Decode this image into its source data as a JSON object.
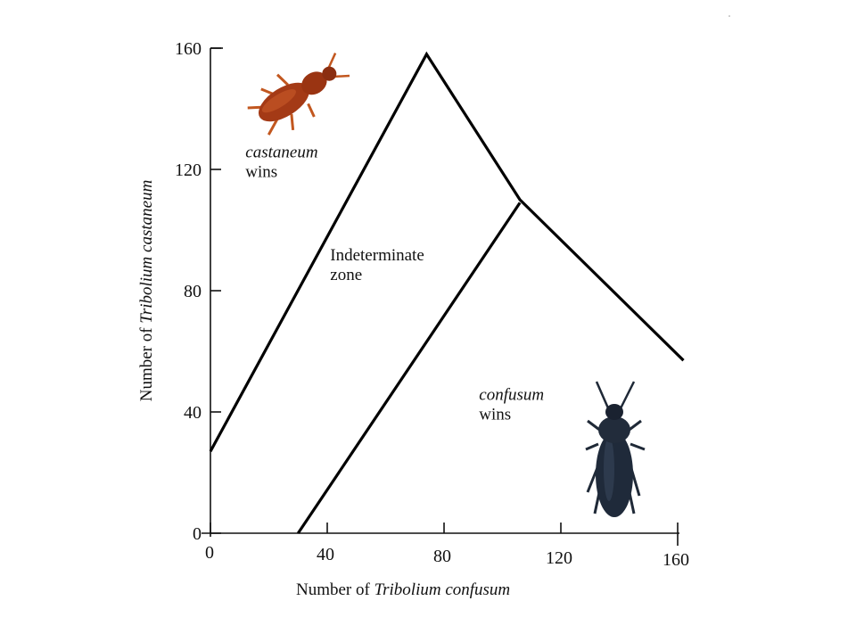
{
  "chart_data": {
    "type": "line",
    "xlabel": "Number of Tribolium confusum",
    "xlabel_parts": {
      "plain": "Number of ",
      "italic": "Tribolium confusum"
    },
    "ylabel": "Number of Tribolium castaneum",
    "ylabel_parts": {
      "plain": "Number of ",
      "italic": "Tribolium castaneum"
    },
    "xlim": [
      0,
      160
    ],
    "ylim": [
      0,
      160
    ],
    "x_ticks": [
      0,
      40,
      80,
      120,
      160
    ],
    "y_ticks": [
      0,
      40,
      80,
      120,
      160
    ],
    "grid": false,
    "series": [
      {
        "points": [
          [
            0,
            27
          ],
          [
            74,
            158
          ],
          [
            106,
            110
          ],
          [
            162,
            57
          ]
        ]
      },
      {
        "points": [
          [
            30,
            0
          ],
          [
            106,
            109
          ]
        ]
      }
    ],
    "annotations": [
      {
        "id": "castaneum",
        "italic": "castaneum",
        "plain": "wins",
        "x": 12,
        "y": 124
      },
      {
        "id": "indeterminate",
        "plain1": "Indeterminate",
        "plain2": "zone",
        "x": 41,
        "y": 90
      },
      {
        "id": "confusum",
        "italic": "confusum",
        "plain": "wins",
        "x": 92,
        "y": 44
      }
    ],
    "icons": [
      "red-flour-beetle-icon",
      "confused-flour-beetle-icon"
    ]
  }
}
